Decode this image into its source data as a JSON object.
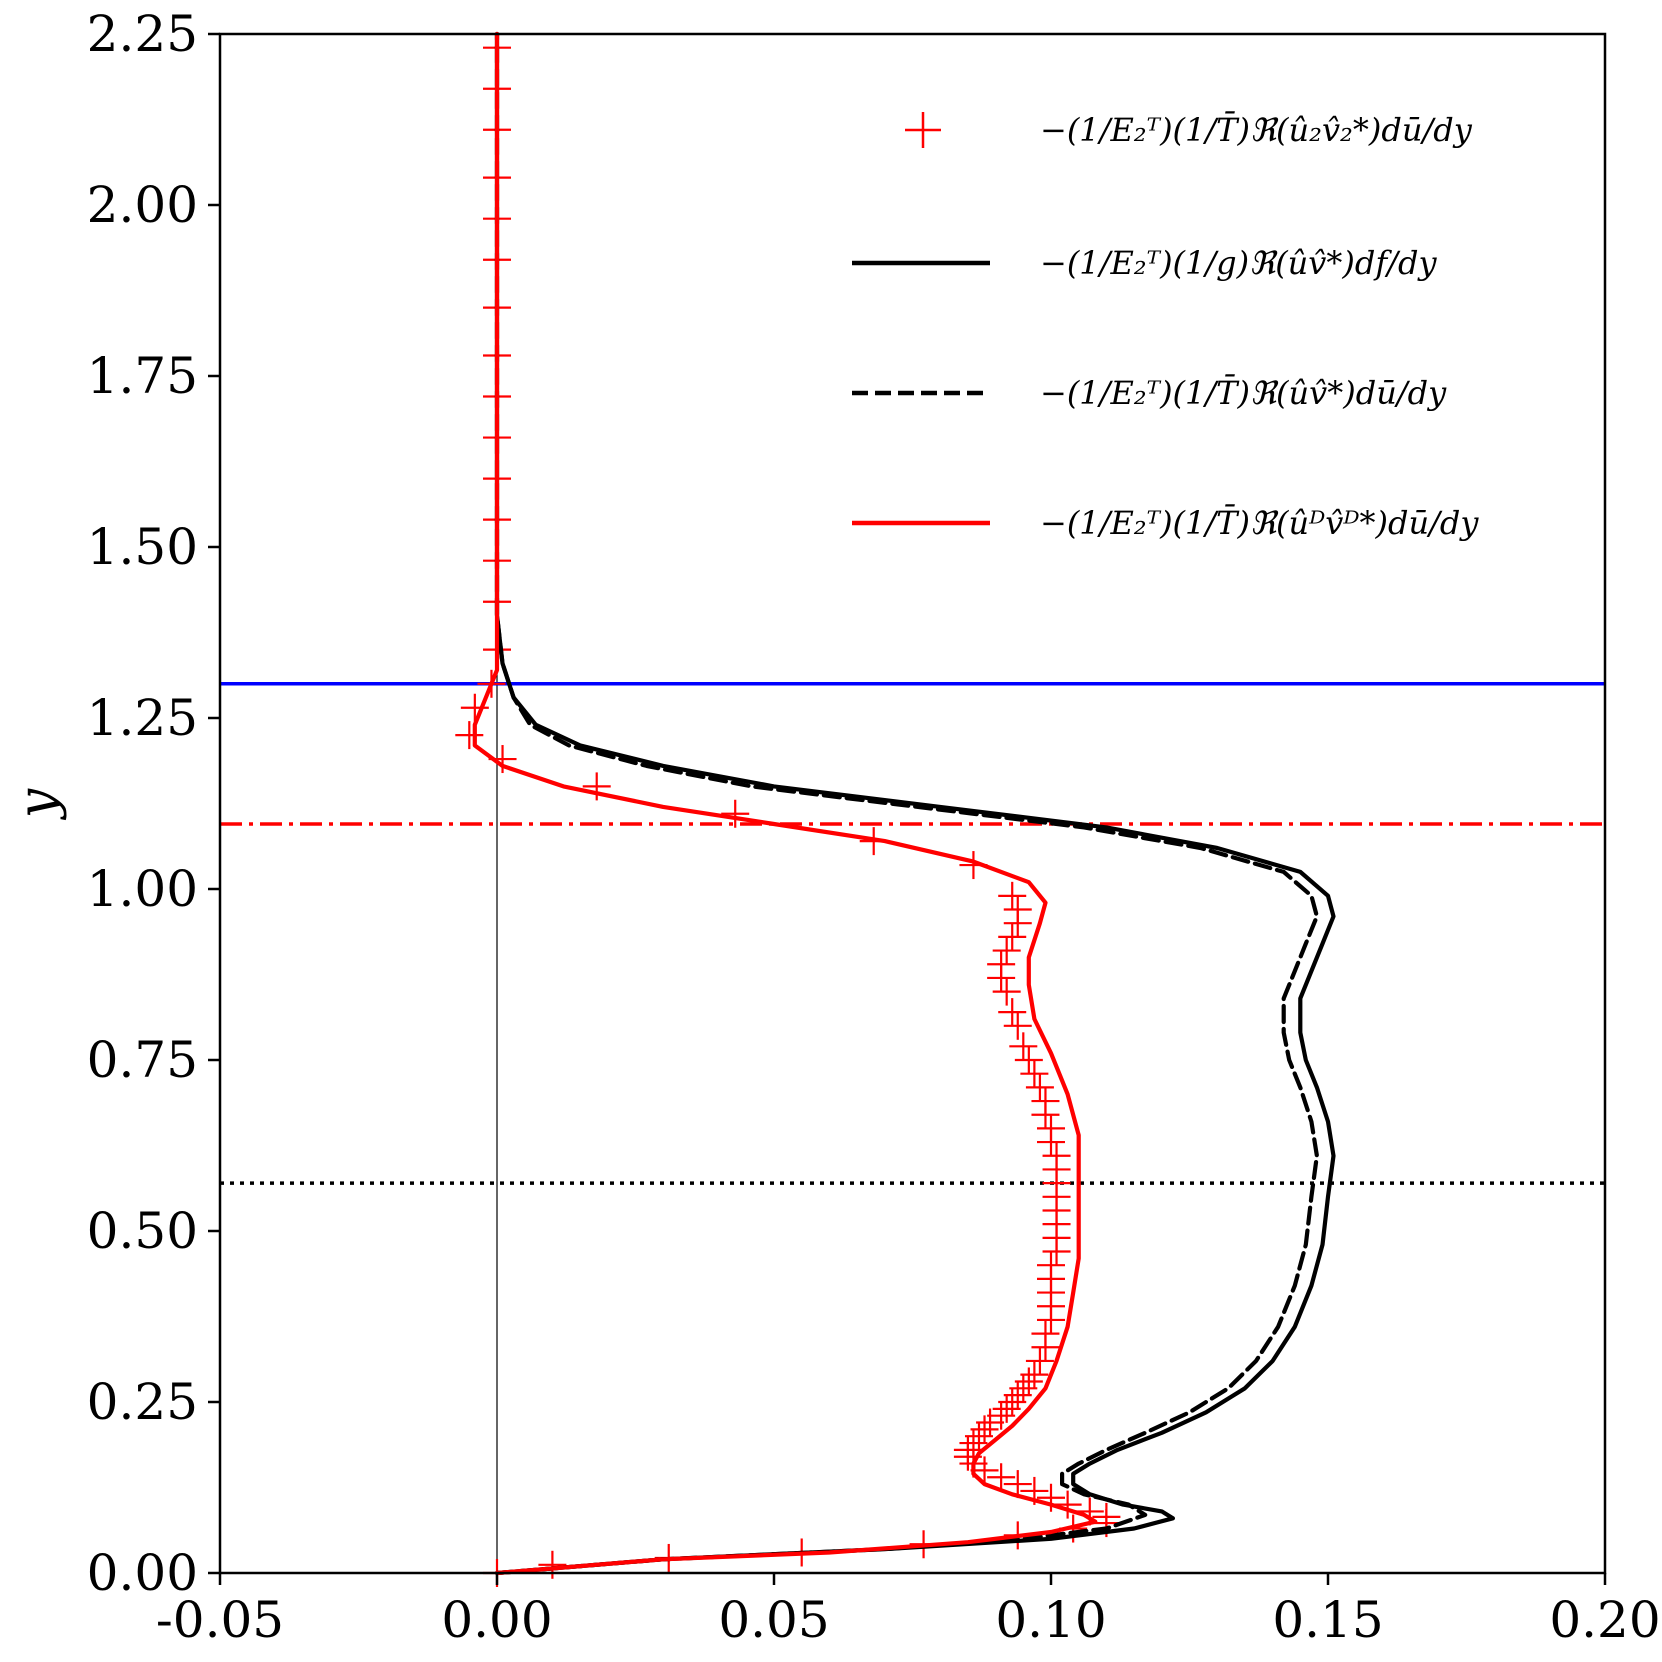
{
  "chart_data": {
    "type": "line",
    "title": "",
    "xlabel": "",
    "ylabel": "y",
    "xlim": [
      -0.05,
      0.2
    ],
    "ylim": [
      0.0,
      2.25
    ],
    "xticks": [
      -0.05,
      0.0,
      0.05,
      0.1,
      0.15,
      0.2
    ],
    "xtick_labels": [
      "-0.05",
      "0.00",
      "0.05",
      "0.10",
      "0.15",
      "0.20"
    ],
    "yticks": [
      0.0,
      0.25,
      0.5,
      0.75,
      1.0,
      1.25,
      1.5,
      1.75,
      2.0,
      2.25
    ],
    "ytick_labels": [
      "0.00",
      "0.25",
      "0.50",
      "0.75",
      "1.00",
      "1.25",
      "1.50",
      "1.75",
      "2.00",
      "2.25"
    ],
    "legend_position": "top-right",
    "series": [
      {
        "name": "−(1/E₂ᵀ)(1/T̄)ℜ(û₂v̂₂*)dū/dy",
        "style": "markers-plus",
        "color": "#ff0000",
        "points": [
          [
            0.0,
            0.0
          ],
          [
            0.01,
            0.012
          ],
          [
            0.031,
            0.022
          ],
          [
            0.055,
            0.03
          ],
          [
            0.077,
            0.042
          ],
          [
            0.094,
            0.055
          ],
          [
            0.104,
            0.065
          ],
          [
            0.11,
            0.073
          ],
          [
            0.11,
            0.082
          ],
          [
            0.107,
            0.09
          ],
          [
            0.103,
            0.1
          ],
          [
            0.1,
            0.11
          ],
          [
            0.097,
            0.12
          ],
          [
            0.094,
            0.13
          ],
          [
            0.091,
            0.14
          ],
          [
            0.088,
            0.15
          ],
          [
            0.086,
            0.16
          ],
          [
            0.085,
            0.17
          ],
          [
            0.085,
            0.18
          ],
          [
            0.086,
            0.19
          ],
          [
            0.087,
            0.2
          ],
          [
            0.088,
            0.21
          ],
          [
            0.089,
            0.22
          ],
          [
            0.091,
            0.23
          ],
          [
            0.092,
            0.24
          ],
          [
            0.093,
            0.25
          ],
          [
            0.094,
            0.26
          ],
          [
            0.095,
            0.27
          ],
          [
            0.096,
            0.28
          ],
          [
            0.097,
            0.29
          ],
          [
            0.098,
            0.31
          ],
          [
            0.099,
            0.33
          ],
          [
            0.099,
            0.35
          ],
          [
            0.1,
            0.37
          ],
          [
            0.1,
            0.39
          ],
          [
            0.1,
            0.41
          ],
          [
            0.1,
            0.43
          ],
          [
            0.1,
            0.45
          ],
          [
            0.101,
            0.47
          ],
          [
            0.101,
            0.49
          ],
          [
            0.101,
            0.51
          ],
          [
            0.101,
            0.53
          ],
          [
            0.101,
            0.55
          ],
          [
            0.101,
            0.57
          ],
          [
            0.101,
            0.59
          ],
          [
            0.101,
            0.61
          ],
          [
            0.1,
            0.63
          ],
          [
            0.1,
            0.65
          ],
          [
            0.099,
            0.67
          ],
          [
            0.099,
            0.69
          ],
          [
            0.098,
            0.71
          ],
          [
            0.097,
            0.73
          ],
          [
            0.096,
            0.75
          ],
          [
            0.095,
            0.77
          ],
          [
            0.094,
            0.8
          ],
          [
            0.093,
            0.82
          ],
          [
            0.092,
            0.85
          ],
          [
            0.091,
            0.87
          ],
          [
            0.091,
            0.89
          ],
          [
            0.092,
            0.91
          ],
          [
            0.093,
            0.93
          ],
          [
            0.094,
            0.95
          ],
          [
            0.094,
            0.97
          ],
          [
            0.093,
            0.99
          ],
          [
            0.086,
            1.035
          ],
          [
            0.068,
            1.07
          ],
          [
            0.043,
            1.11
          ],
          [
            0.018,
            1.15
          ],
          [
            0.001,
            1.19
          ],
          [
            -0.005,
            1.225
          ],
          [
            -0.004,
            1.265
          ],
          [
            -0.001,
            1.3
          ],
          [
            0.0,
            1.35
          ],
          [
            0.0,
            1.42
          ],
          [
            0.0,
            1.48
          ],
          [
            0.0,
            1.54
          ],
          [
            0.0,
            1.6
          ],
          [
            0.0,
            1.66
          ],
          [
            0.0,
            1.72
          ],
          [
            0.0,
            1.78
          ],
          [
            0.0,
            1.85
          ],
          [
            0.0,
            1.92
          ],
          [
            0.0,
            1.98
          ],
          [
            0.0,
            2.04
          ],
          [
            0.0,
            2.11
          ],
          [
            0.0,
            2.17
          ],
          [
            0.0,
            2.23
          ]
        ]
      },
      {
        "name": "−(1/E₂ᵀ)(1/g)ℜ(ûv̂*)df/dy",
        "style": "solid",
        "color": "#000000",
        "points": [
          [
            0.0,
            0.0
          ],
          [
            0.03,
            0.02
          ],
          [
            0.07,
            0.035
          ],
          [
            0.1,
            0.05
          ],
          [
            0.115,
            0.065
          ],
          [
            0.122,
            0.08
          ],
          [
            0.12,
            0.09
          ],
          [
            0.113,
            0.1
          ],
          [
            0.107,
            0.115
          ],
          [
            0.104,
            0.13
          ],
          [
            0.104,
            0.145
          ],
          [
            0.107,
            0.16
          ],
          [
            0.112,
            0.18
          ],
          [
            0.12,
            0.205
          ],
          [
            0.128,
            0.235
          ],
          [
            0.135,
            0.27
          ],
          [
            0.14,
            0.31
          ],
          [
            0.144,
            0.36
          ],
          [
            0.147,
            0.42
          ],
          [
            0.149,
            0.48
          ],
          [
            0.15,
            0.55
          ],
          [
            0.151,
            0.61
          ],
          [
            0.15,
            0.66
          ],
          [
            0.148,
            0.71
          ],
          [
            0.146,
            0.75
          ],
          [
            0.145,
            0.79
          ],
          [
            0.145,
            0.84
          ],
          [
            0.147,
            0.88
          ],
          [
            0.149,
            0.92
          ],
          [
            0.151,
            0.96
          ],
          [
            0.15,
            0.99
          ],
          [
            0.145,
            1.025
          ],
          [
            0.13,
            1.06
          ],
          [
            0.11,
            1.09
          ],
          [
            0.08,
            1.12
          ],
          [
            0.05,
            1.15
          ],
          [
            0.03,
            1.18
          ],
          [
            0.015,
            1.21
          ],
          [
            0.007,
            1.24
          ],
          [
            0.003,
            1.28
          ],
          [
            0.001,
            1.33
          ],
          [
            0.0,
            1.4
          ],
          [
            0.0,
            2.25
          ]
        ]
      },
      {
        "name": "−(1/E₂ᵀ)(1/T̄)ℜ(ûv̂*)dū/dy",
        "style": "dashed",
        "color": "#000000",
        "points": [
          [
            0.0,
            0.0
          ],
          [
            0.03,
            0.02
          ],
          [
            0.07,
            0.035
          ],
          [
            0.095,
            0.05
          ],
          [
            0.11,
            0.065
          ],
          [
            0.117,
            0.085
          ],
          [
            0.114,
            0.1
          ],
          [
            0.106,
            0.115
          ],
          [
            0.102,
            0.13
          ],
          [
            0.102,
            0.145
          ],
          [
            0.105,
            0.16
          ],
          [
            0.11,
            0.18
          ],
          [
            0.117,
            0.205
          ],
          [
            0.125,
            0.235
          ],
          [
            0.132,
            0.27
          ],
          [
            0.137,
            0.31
          ],
          [
            0.141,
            0.36
          ],
          [
            0.144,
            0.42
          ],
          [
            0.146,
            0.48
          ],
          [
            0.147,
            0.55
          ],
          [
            0.148,
            0.61
          ],
          [
            0.147,
            0.66
          ],
          [
            0.145,
            0.71
          ],
          [
            0.143,
            0.75
          ],
          [
            0.142,
            0.79
          ],
          [
            0.142,
            0.84
          ],
          [
            0.144,
            0.88
          ],
          [
            0.146,
            0.92
          ],
          [
            0.148,
            0.96
          ],
          [
            0.147,
            0.99
          ],
          [
            0.142,
            1.025
          ],
          [
            0.127,
            1.06
          ],
          [
            0.106,
            1.09
          ],
          [
            0.076,
            1.12
          ],
          [
            0.046,
            1.15
          ],
          [
            0.027,
            1.18
          ],
          [
            0.013,
            1.21
          ],
          [
            0.006,
            1.24
          ],
          [
            0.003,
            1.28
          ],
          [
            0.001,
            1.33
          ],
          [
            0.0,
            1.4
          ],
          [
            0.0,
            2.25
          ]
        ]
      },
      {
        "name": "−(1/E₂ᵀ)(1/T̄)ℜ(ûᴰv̂ᴰ*)dū/dy",
        "style": "solid",
        "color": "#ff0000",
        "points": [
          [
            0.0,
            0.0
          ],
          [
            0.03,
            0.02
          ],
          [
            0.06,
            0.03
          ],
          [
            0.085,
            0.045
          ],
          [
            0.1,
            0.06
          ],
          [
            0.108,
            0.075
          ],
          [
            0.106,
            0.085
          ],
          [
            0.1,
            0.1
          ],
          [
            0.093,
            0.115
          ],
          [
            0.088,
            0.13
          ],
          [
            0.086,
            0.145
          ],
          [
            0.086,
            0.16
          ],
          [
            0.087,
            0.175
          ],
          [
            0.09,
            0.195
          ],
          [
            0.093,
            0.215
          ],
          [
            0.096,
            0.24
          ],
          [
            0.099,
            0.27
          ],
          [
            0.101,
            0.31
          ],
          [
            0.103,
            0.36
          ],
          [
            0.104,
            0.41
          ],
          [
            0.105,
            0.46
          ],
          [
            0.105,
            0.52
          ],
          [
            0.105,
            0.58
          ],
          [
            0.105,
            0.64
          ],
          [
            0.103,
            0.7
          ],
          [
            0.1,
            0.76
          ],
          [
            0.097,
            0.81
          ],
          [
            0.096,
            0.86
          ],
          [
            0.096,
            0.9
          ],
          [
            0.098,
            0.95
          ],
          [
            0.099,
            0.98
          ],
          [
            0.096,
            1.01
          ],
          [
            0.086,
            1.04
          ],
          [
            0.07,
            1.07
          ],
          [
            0.05,
            1.095
          ],
          [
            0.03,
            1.12
          ],
          [
            0.012,
            1.15
          ],
          [
            0.001,
            1.18
          ],
          [
            -0.004,
            1.21
          ],
          [
            -0.004,
            1.24
          ],
          [
            -0.002,
            1.28
          ],
          [
            0.0,
            1.32
          ],
          [
            0.0,
            1.4
          ],
          [
            0.0,
            2.25
          ]
        ]
      }
    ],
    "reference_lines": [
      {
        "orientation": "vertical",
        "value": 0.0,
        "style": "solid-thin",
        "color": "#000000"
      },
      {
        "orientation": "horizontal",
        "value": 1.3,
        "style": "solid",
        "color": "#0000ff"
      },
      {
        "orientation": "horizontal",
        "value": 1.095,
        "style": "dash-dot",
        "color": "#ff0000"
      },
      {
        "orientation": "horizontal",
        "value": 0.57,
        "style": "dotted",
        "color": "#000000"
      }
    ]
  }
}
